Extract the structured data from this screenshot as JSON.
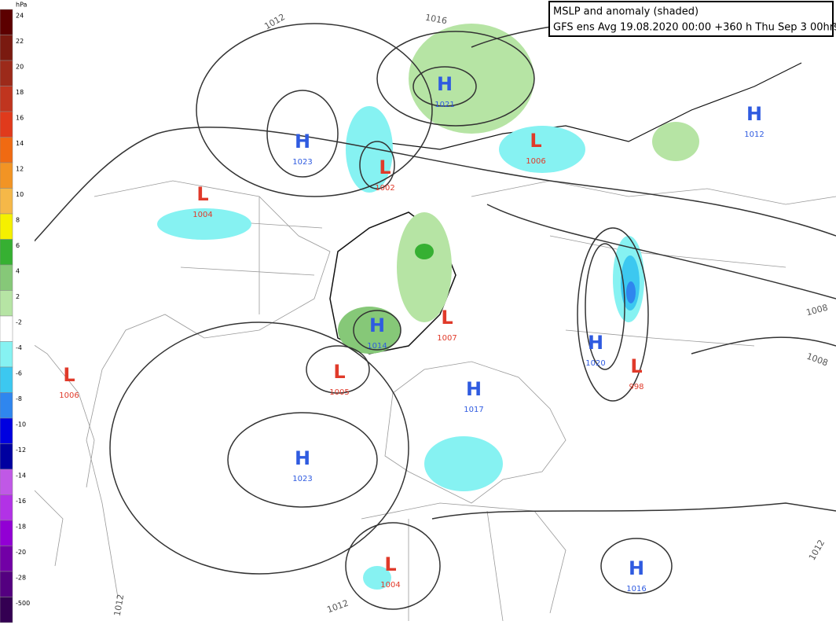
{
  "header": {
    "title": "MSLP and anomaly (shaded)",
    "subtitle": "GFS ens Avg 19.08.2020 00:00 +360 h Thu Sep 3 00hrs"
  },
  "legend": {
    "unit": "hPa",
    "items": [
      {
        "label": 24,
        "color": "#5c0000"
      },
      {
        "label": 22,
        "color": "#7a1a10"
      },
      {
        "label": 20,
        "color": "#9c2a1a"
      },
      {
        "label": 18,
        "color": "#c0351f"
      },
      {
        "label": 16,
        "color": "#e03a1c"
      },
      {
        "label": 14,
        "color": "#f06a12"
      },
      {
        "label": 12,
        "color": "#f29424"
      },
      {
        "label": 10,
        "color": "#f5b848"
      },
      {
        "label": 8,
        "color": "#f5f000"
      },
      {
        "label": 6,
        "color": "#36b032"
      },
      {
        "label": 4,
        "color": "#86c878"
      },
      {
        "label": 2,
        "color": "#b6e4a4"
      },
      {
        "label": -2,
        "color": "#ffffff"
      },
      {
        "label": -4,
        "color": "#86f2f2"
      },
      {
        "label": -6,
        "color": "#3cc8f0"
      },
      {
        "label": -8,
        "color": "#2f86ee"
      },
      {
        "label": -10,
        "color": "#0000e0"
      },
      {
        "label": -12,
        "color": "#0000a0"
      },
      {
        "label": -14,
        "color": "#c058e6"
      },
      {
        "label": -16,
        "color": "#b232e6"
      },
      {
        "label": -18,
        "color": "#9200d4"
      },
      {
        "label": -20,
        "color": "#7200a6"
      },
      {
        "label": -28,
        "color": "#540080"
      },
      {
        "label": -500,
        "color": "#340052"
      }
    ]
  },
  "centers": [
    {
      "type": "H",
      "value": 1021
    },
    {
      "type": "H",
      "value": 1023
    },
    {
      "type": "L",
      "value": 1002
    },
    {
      "type": "H",
      "value": 1012
    },
    {
      "type": "L",
      "value": 1006
    },
    {
      "type": "L",
      "value": 1004
    },
    {
      "type": "L",
      "value": 1006
    },
    {
      "type": "H",
      "value": 1014
    },
    {
      "type": "L",
      "value": 1007
    },
    {
      "type": "L",
      "value": 1005
    },
    {
      "type": "H",
      "value": 1017
    },
    {
      "type": "H",
      "value": 1020
    },
    {
      "type": "L",
      "value": 998
    },
    {
      "type": "H",
      "value": 1023
    },
    {
      "type": "L",
      "value": 1004
    },
    {
      "type": "H",
      "value": 1016
    }
  ],
  "isobar_labels": [
    1012,
    1016,
    1008,
    1008,
    1012,
    1012,
    1012
  ]
}
